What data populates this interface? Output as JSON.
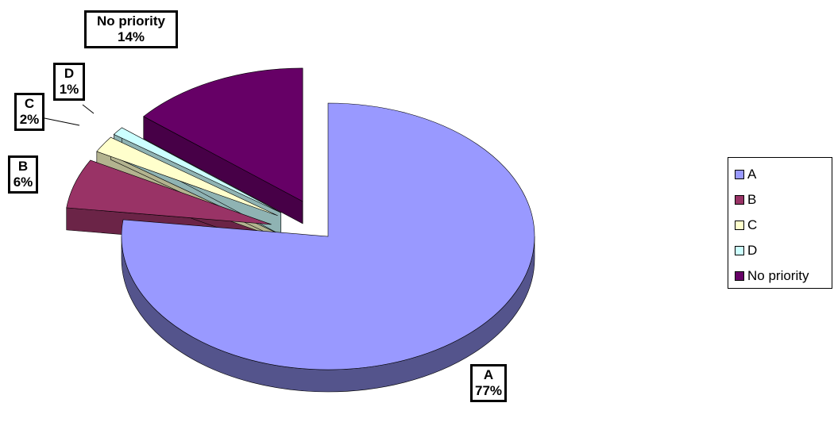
{
  "chart_data": {
    "type": "pie",
    "title": "",
    "categories": [
      "A",
      "B",
      "C",
      "D",
      "No priority"
    ],
    "values": [
      77,
      6,
      2,
      1,
      14
    ],
    "data_labels": [
      "77%",
      "6%",
      "2%",
      "1%",
      "14%"
    ],
    "colors": [
      "#9999ff",
      "#993366",
      "#ffffcc",
      "#ccffff",
      "#660066"
    ],
    "exploded": [
      false,
      true,
      true,
      true,
      true
    ],
    "three_d": true,
    "legend_position": "right"
  },
  "legend": {
    "items": [
      {
        "label": "A",
        "color": "#9999ff"
      },
      {
        "label": "B",
        "color": "#993366"
      },
      {
        "label": "C",
        "color": "#ffffcc"
      },
      {
        "label": "D",
        "color": "#ccffff"
      },
      {
        "label": "No priority",
        "color": "#660066"
      }
    ]
  }
}
